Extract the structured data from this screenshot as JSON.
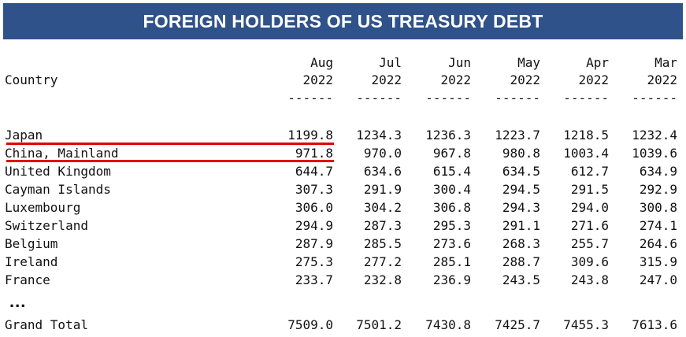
{
  "title": "FOREIGN HOLDERS OF US TREASURY DEBT",
  "table": {
    "country_header": "Country",
    "columns": [
      {
        "month": "Aug",
        "year": "2022",
        "rule": "------"
      },
      {
        "month": "Jul",
        "year": "2022",
        "rule": "------"
      },
      {
        "month": "Jun",
        "year": "2022",
        "rule": "------"
      },
      {
        "month": "May",
        "year": "2022",
        "rule": "------"
      },
      {
        "month": "Apr",
        "year": "2022",
        "rule": "------"
      },
      {
        "month": "Mar",
        "year": "2022",
        "rule": "------"
      }
    ],
    "rows": [
      {
        "country": "Japan",
        "values": [
          "1199.8",
          "1234.3",
          "1236.3",
          "1223.7",
          "1218.5",
          "1232.4"
        ]
      },
      {
        "country": "China, Mainland",
        "values": [
          "971.8",
          "970.0",
          "967.8",
          "980.8",
          "1003.4",
          "1039.6"
        ]
      },
      {
        "country": "United Kingdom",
        "values": [
          "644.7",
          "634.6",
          "615.4",
          "634.5",
          "612.7",
          "634.9"
        ]
      },
      {
        "country": "Cayman Islands",
        "values": [
          "307.3",
          "291.9",
          "300.4",
          "294.5",
          "291.5",
          "292.9"
        ]
      },
      {
        "country": "Luxembourg",
        "values": [
          "306.0",
          "304.2",
          "306.8",
          "294.3",
          "294.0",
          "300.8"
        ]
      },
      {
        "country": "Switzerland",
        "values": [
          "294.9",
          "287.3",
          "295.3",
          "291.1",
          "271.6",
          "274.1"
        ]
      },
      {
        "country": "Belgium",
        "values": [
          "287.9",
          "285.5",
          "273.6",
          "268.3",
          "255.7",
          "264.6"
        ]
      },
      {
        "country": "Ireland",
        "values": [
          "275.3",
          "277.2",
          "285.1",
          "288.7",
          "309.6",
          "315.9"
        ]
      },
      {
        "country": "France",
        "values": [
          "233.7",
          "232.8",
          "236.9",
          "243.5",
          "243.8",
          "247.0"
        ]
      }
    ],
    "ellipsis": "...",
    "total": {
      "country": "Grand Total",
      "values": [
        "7509.0",
        "7501.2",
        "7430.8",
        "7425.7",
        "7455.3",
        "7613.6"
      ]
    }
  },
  "highlight_color": "#e10000",
  "banner_color": "#2e5289"
}
